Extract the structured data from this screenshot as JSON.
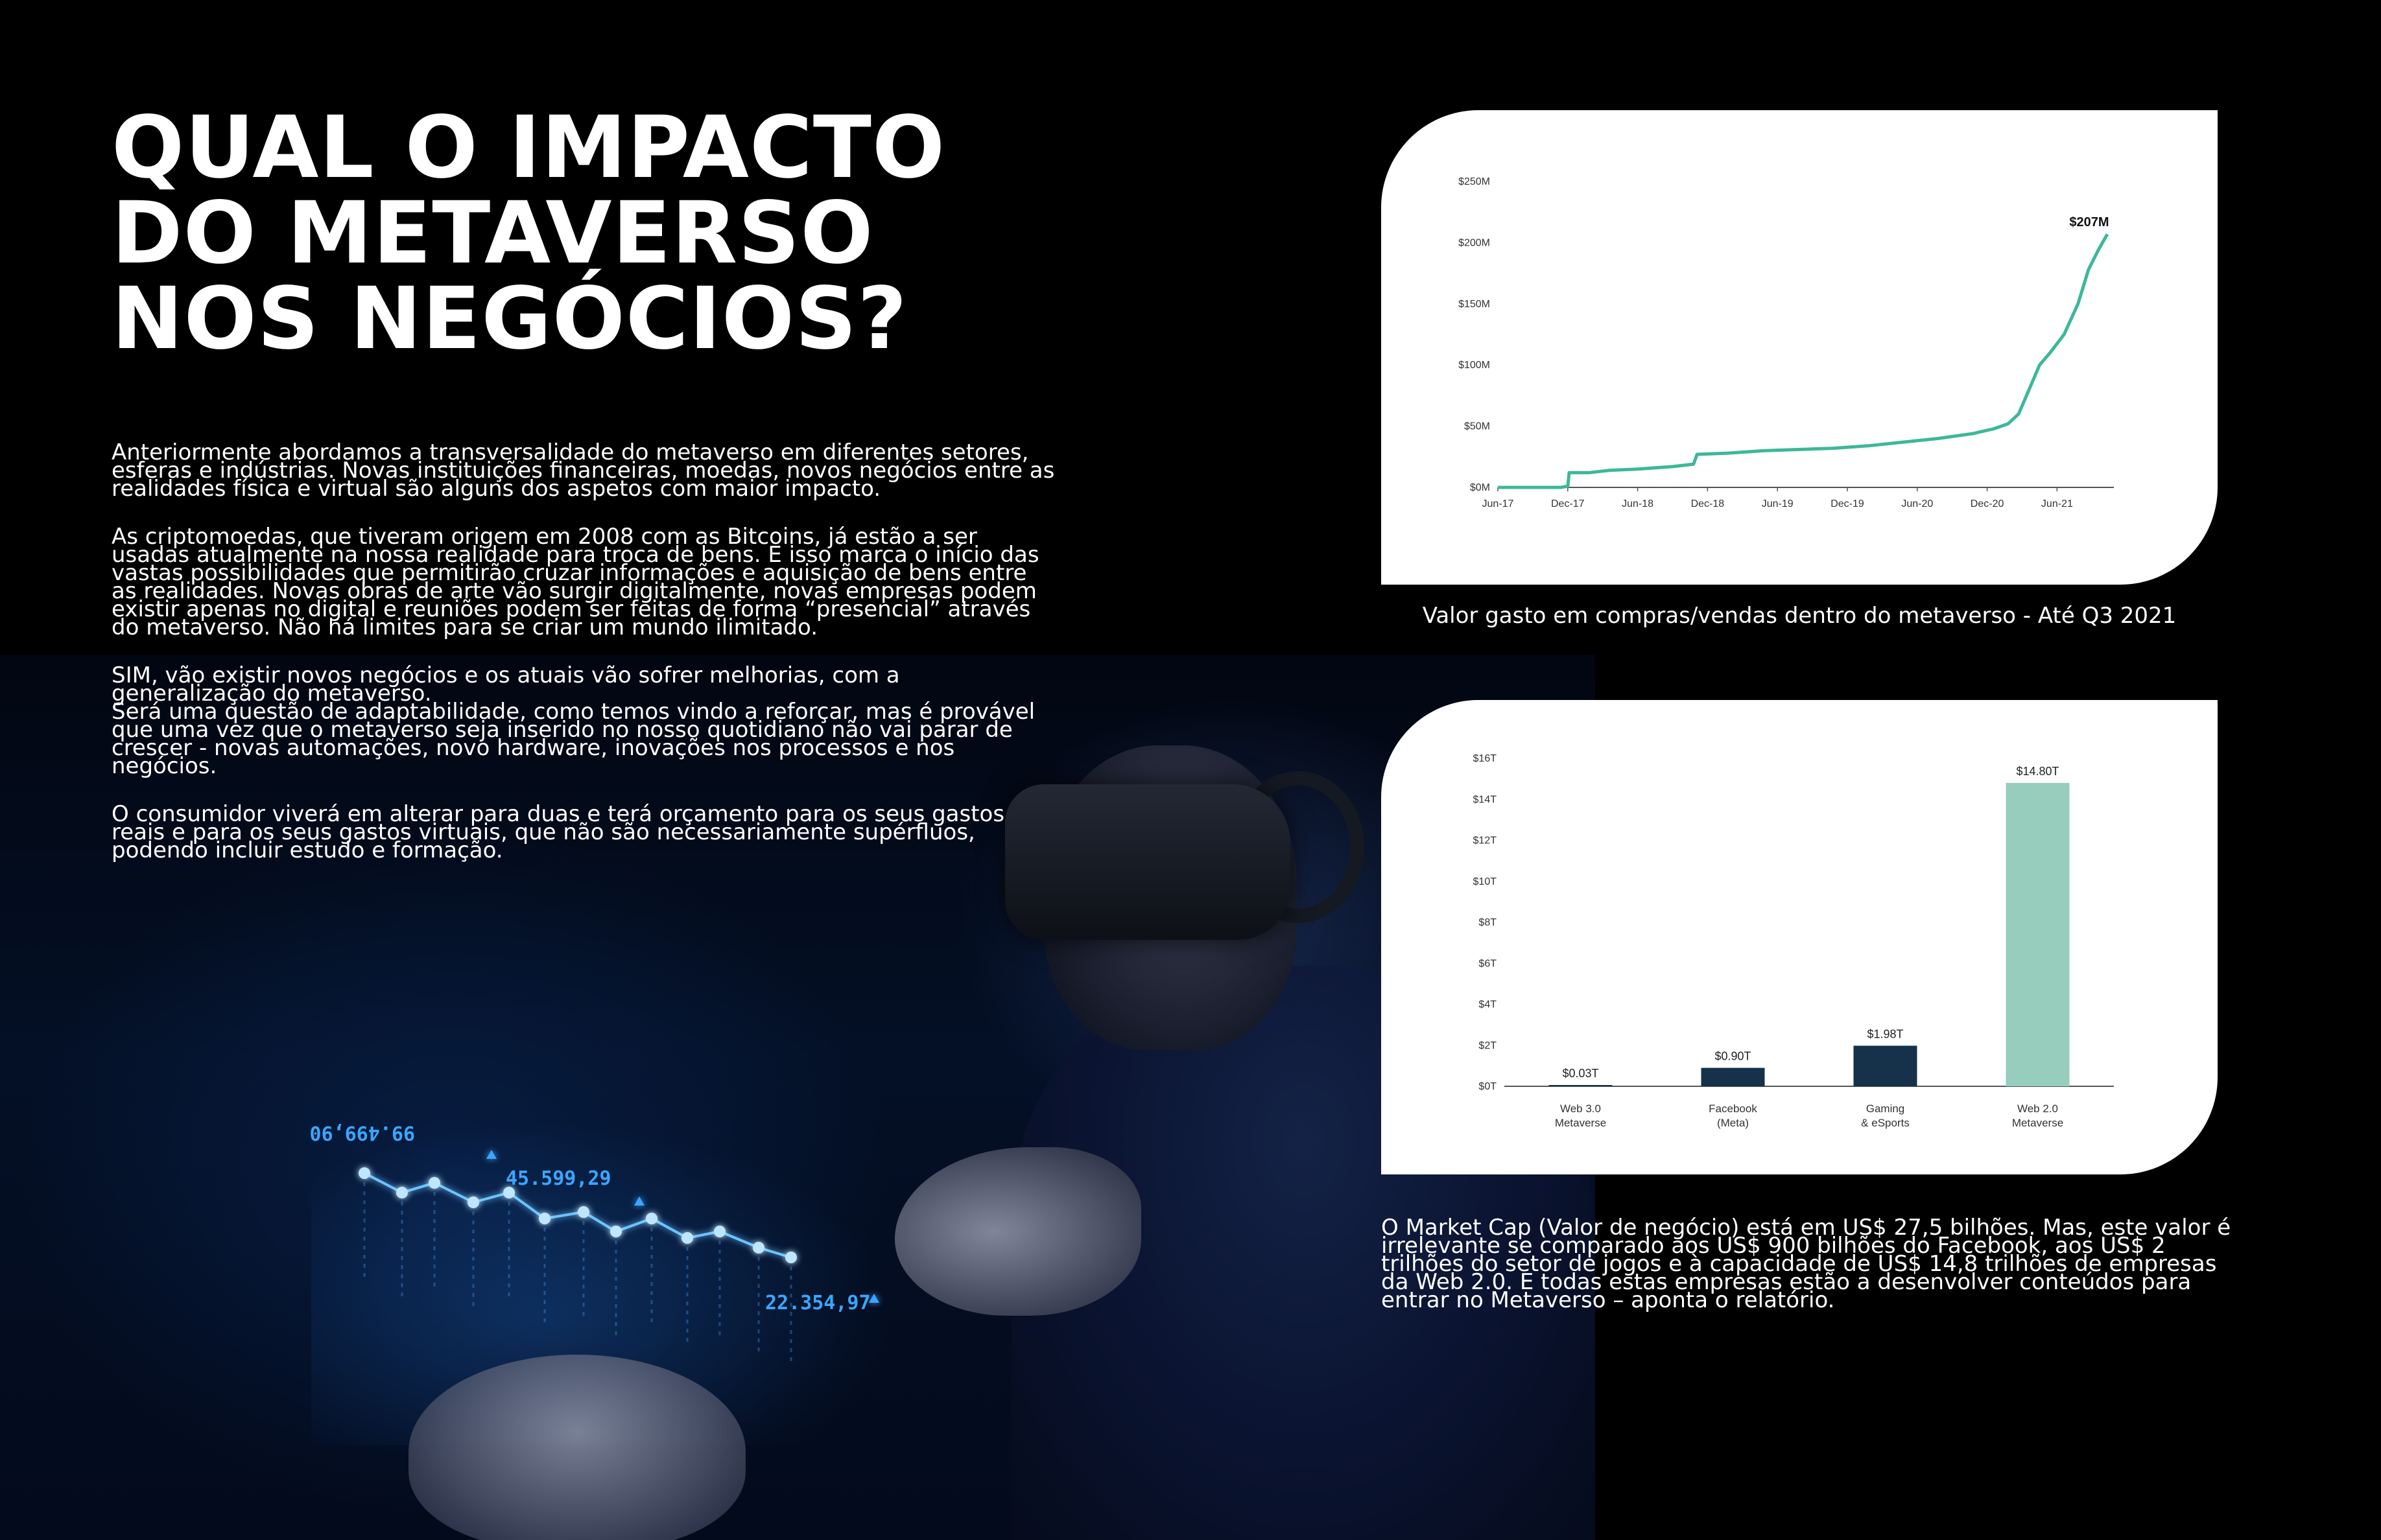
{
  "title_lines": [
    "QUAL O IMPACTO",
    "DO METAVERSO",
    "NOS NEGÓCIOS?"
  ],
  "paragraphs": [
    "Anteriormente abordamos a transversalidade do metaverso em diferentes setores, esferas e indústrias. Novas instituições financeiras, moedas, novos negócios entre as realidades física e virtual são alguns dos aspetos com maior impacto.",
    "As criptomoedas, que tiveram origem em 2008 com as Bitcoins, já estão a ser usadas atualmente na nossa realidade para troca de bens. E isso marca o início das vastas possibilidades que permitirão cruzar informações e aquisição de bens entre as realidades. Novas obras de arte vão surgir digitalmente, novas empresas podem existir apenas no digital e reuniões podem ser feitas de forma “presencial” através do metaverso. Não há limites para se criar um mundo ilimitado.",
    "SIM, vão existir novos negócios e os atuais vão sofrer melhorias, com a generalização do metaverso.\nSerá uma questão de adaptabilidade, como temos vindo a reforçar, mas é provável que uma vez que o metaverso seja inserido no nosso quotidiano não vai parar de crescer - novas automações, novo hardware, inovações nos processos e nos negócios.",
    "O consumidor viverá em alterar para duas e terá orçamento para os seus gastos reais e para os seus gastos virtuais, que não são necessariamente supérfluos, podendo incluir estudo e formação."
  ],
  "hologram": {
    "labels": [
      "99.499,90",
      "45.599,29",
      "22.354,97"
    ]
  },
  "chart_data": [
    {
      "type": "line",
      "title": "",
      "xlabel": "",
      "ylabel": "",
      "x_ticks": [
        "Jun-17",
        "Dec-17",
        "Jun-18",
        "Dec-18",
        "Jun-19",
        "Dec-19",
        "Jun-20",
        "Dec-20",
        "Jun-21"
      ],
      "y_ticks": [
        "$0M",
        "$50M",
        "$100M",
        "$150M",
        "$200M",
        "$250M"
      ],
      "ylim": [
        0,
        250
      ],
      "series": [
        {
          "color": "#3cb89a",
          "points": [
            [
              0,
              0
            ],
            [
              0.9,
              0
            ],
            [
              1.0,
              1
            ],
            [
              1.02,
              12
            ],
            [
              1.3,
              12
            ],
            [
              1.6,
              14
            ],
            [
              2.0,
              15
            ],
            [
              2.5,
              17
            ],
            [
              2.8,
              19
            ],
            [
              2.85,
              27
            ],
            [
              3.3,
              28
            ],
            [
              3.8,
              30
            ],
            [
              4.3,
              31
            ],
            [
              4.8,
              32
            ],
            [
              5.3,
              34
            ],
            [
              5.8,
              37
            ],
            [
              6.3,
              40
            ],
            [
              6.8,
              44
            ],
            [
              7.1,
              48
            ],
            [
              7.3,
              52
            ],
            [
              7.45,
              60
            ],
            [
              7.6,
              80
            ],
            [
              7.75,
              100
            ],
            [
              7.9,
              110
            ],
            [
              8.1,
              125
            ],
            [
              8.3,
              150
            ],
            [
              8.45,
              178
            ],
            [
              8.6,
              195
            ],
            [
              8.72,
              207
            ]
          ]
        }
      ],
      "annotation": "$207M"
    },
    {
      "type": "bar",
      "title": "",
      "xlabel": "",
      "ylabel": "",
      "categories": [
        [
          "Web 3.0",
          "Metaverse"
        ],
        [
          "Facebook",
          "(Meta)"
        ],
        [
          "Gaming",
          "& eSports"
        ],
        [
          "Web 2.0",
          "Metaverse"
        ]
      ],
      "values": [
        0.03,
        0.9,
        1.98,
        14.8
      ],
      "value_labels": [
        "$0.03T",
        "$0.90T",
        "$1.98T",
        "$14.80T"
      ],
      "colors": [
        "#15324a",
        "#15324a",
        "#15324a",
        "#96cdbd"
      ],
      "y_ticks": [
        "$0T",
        "$2T",
        "$4T",
        "$6T",
        "$8T",
        "$10T",
        "$12T",
        "$14T",
        "$16T"
      ],
      "ylim": [
        0,
        16
      ]
    }
  ],
  "captions": {
    "chart1": "Valor gasto em compras/vendas dentro do metaverso - Até Q3 2021",
    "chart2": "O Market Cap (Valor de negócio) está em US$ 27,5 bilhões. Mas, este valor é irrelevante se comparado aos US$ 900 bilhões do Facebook, aos US$ 2 trilhões do setor de jogos e à capacidade de US$ 14,8 trilhões de empresas da Web 2.0. E todas estas empresas estão a desenvolver conteúdos para entrar no Metaverso – aponta o relatório."
  }
}
